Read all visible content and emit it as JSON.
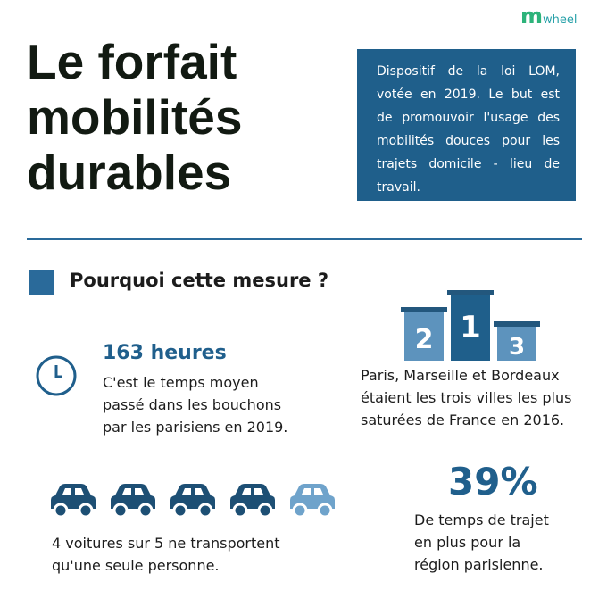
{
  "logo": {
    "m": "m",
    "rest": "wheel"
  },
  "title": {
    "lines": [
      "Le forfait",
      "mobilités",
      "durables"
    ]
  },
  "intro": {
    "lines": [
      "Dispositif de la loi LOM,",
      "votée en 2019. Le but est",
      "de promouvoir l'usage des",
      "mobilités douces pour les",
      "trajets domicile - lieu de",
      "travail."
    ]
  },
  "section": {
    "heading": "Pourquoi cette mesure ?"
  },
  "stat_hours": {
    "headline": "163 heures",
    "lines": [
      "C'est le temps moyen",
      "passé dans les bouchons",
      "par les parisiens en 2019."
    ]
  },
  "podium": {
    "ranks": [
      "2",
      "1",
      "3"
    ],
    "lines": [
      "Paris, Marseille et Bordeaux",
      "étaient les trois villes les plus",
      "saturées de France en 2016."
    ]
  },
  "cars": {
    "lines": [
      "4 voitures sur 5 ne transportent",
      "qu'une seule personne."
    ]
  },
  "stat_percent": {
    "headline": "39%",
    "lines": [
      "De temps de trajet",
      "en plus pour la",
      "région parisienne."
    ]
  }
}
